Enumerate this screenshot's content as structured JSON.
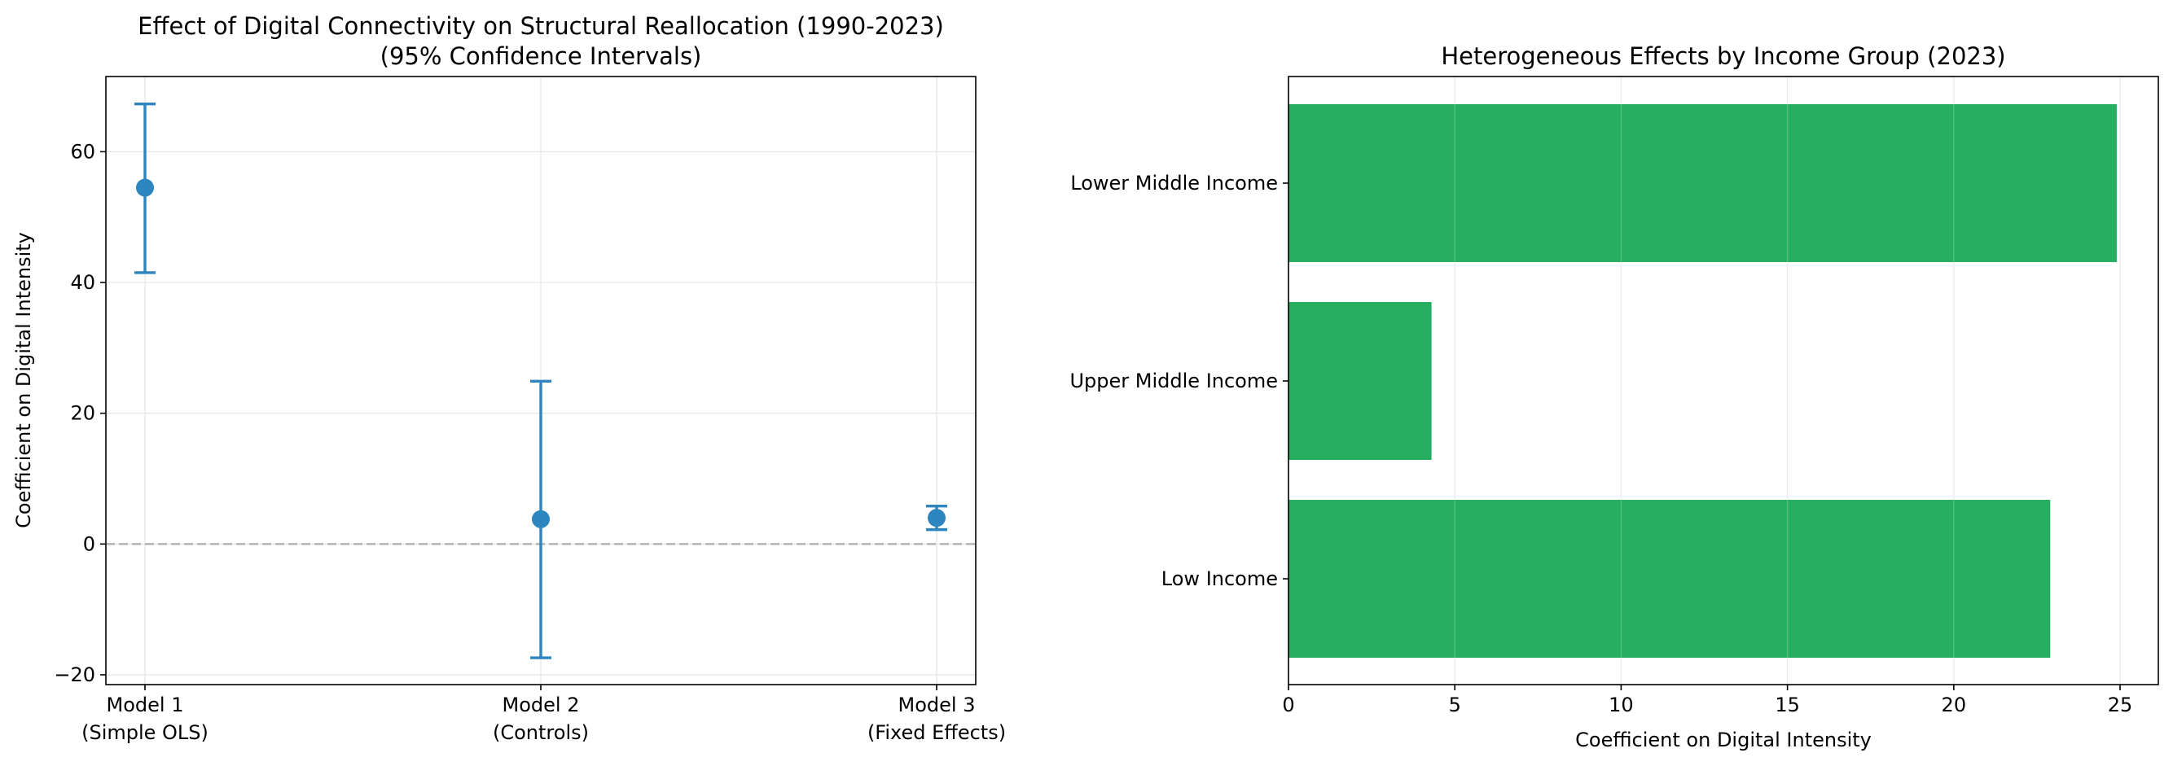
{
  "chart_data": [
    {
      "type": "errorbar",
      "title": "Effect of Digital Connectivity on Structural Reallocation (1990-2023)",
      "subtitle": "(95% Confidence Intervals)",
      "xlabel": "",
      "ylabel": "Coefficient on Digital Intensity",
      "categories": [
        {
          "line1": "Model 1",
          "line2": "(Simple OLS)"
        },
        {
          "line1": "Model 2",
          "line2": "(Controls)"
        },
        {
          "line1": "Model 3",
          "line2": "(Fixed Effects)"
        }
      ],
      "points": [
        {
          "estimate": 54.5,
          "lower": 41.5,
          "upper": 67.3
        },
        {
          "estimate": 3.8,
          "lower": -17.4,
          "upper": 24.9
        },
        {
          "estimate": 4.0,
          "lower": 2.2,
          "upper": 5.8
        }
      ],
      "ylim": [
        -21.5,
        71.5
      ],
      "yticks": [
        -20,
        0,
        20,
        40,
        60
      ],
      "reference_line": 0,
      "grid": true,
      "color": "#2e86c1",
      "reference_color": "#b0b0b0"
    },
    {
      "type": "barh",
      "title": "Heterogeneous Effects by Income Group (2023)",
      "xlabel": "Coefficient on Digital Intensity",
      "ylabel": "",
      "categories": [
        "Low Income",
        "Upper Middle Income",
        "Lower Middle Income"
      ],
      "values": [
        22.9,
        4.3,
        24.9
      ],
      "xlim": [
        0,
        26.15
      ],
      "xticks": [
        0,
        5,
        10,
        15,
        20,
        25
      ],
      "grid": true,
      "color": "#27ae60"
    }
  ]
}
